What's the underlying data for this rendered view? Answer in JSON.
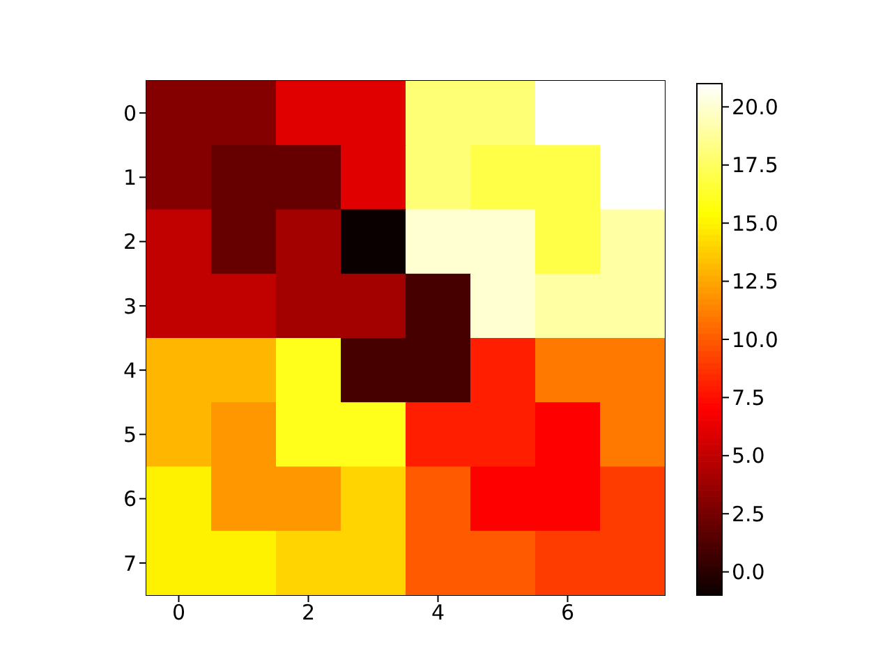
{
  "chart_data": {
    "type": "heatmap",
    "categories": [
      "0",
      null,
      "2",
      null,
      "4",
      null,
      "6",
      null
    ],
    "y_categories": [
      "0",
      "1",
      "2",
      "3",
      "4",
      "5",
      "6",
      "7"
    ],
    "cells": [
      [
        3,
        3,
        6,
        6,
        18,
        18,
        21,
        21
      ],
      [
        3,
        2,
        2,
        6,
        18,
        17,
        17,
        21
      ],
      [
        5,
        2,
        4,
        -1,
        20,
        20,
        17,
        19
      ],
      [
        5,
        5,
        4,
        4,
        1,
        20,
        19,
        19
      ],
      [
        13,
        13,
        16,
        1,
        1,
        8,
        11,
        11
      ],
      [
        13,
        12,
        16,
        16,
        8,
        8,
        7,
        11
      ],
      [
        15,
        12,
        12,
        14,
        10,
        7,
        7,
        9
      ],
      [
        15,
        15,
        14,
        14,
        10,
        10,
        9,
        9
      ]
    ],
    "clim": [
      -1,
      21
    ],
    "cticks": [
      {
        "value": 0,
        "label": "0.0"
      },
      {
        "value": 2.5,
        "label": "2.5"
      },
      {
        "value": 5,
        "label": "5.0"
      },
      {
        "value": 7.5,
        "label": "7.5"
      },
      {
        "value": 10,
        "label": "10.0"
      },
      {
        "value": 12.5,
        "label": "12.5"
      },
      {
        "value": 15,
        "label": "15.0"
      },
      {
        "value": 17.5,
        "label": "17.5"
      },
      {
        "value": 20,
        "label": "20.0"
      }
    ]
  }
}
